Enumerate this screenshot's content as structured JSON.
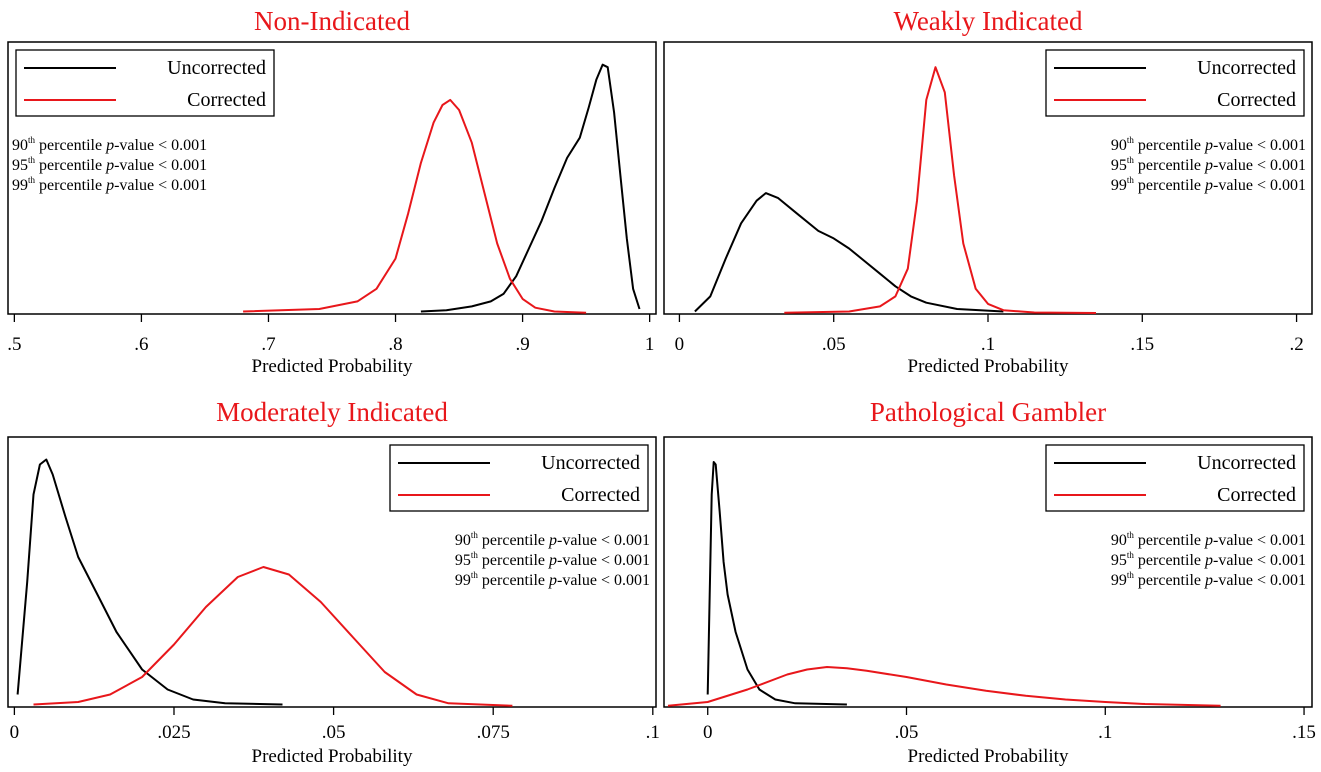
{
  "chart_data": [
    {
      "type": "line",
      "title": "Non-Indicated",
      "xlabel": "Predicted Probability",
      "xlim": [
        0.495,
        1.005
      ],
      "ylim": [
        0,
        1.08
      ],
      "xticks": [
        0.5,
        0.6,
        0.7,
        0.8,
        0.9,
        1.0
      ],
      "xtick_labels": [
        ".5",
        ".6",
        ".7",
        ".8",
        ".9",
        "1"
      ],
      "legend": {
        "position": "top-left"
      },
      "notes": [
        {
          "pct": "90",
          "sup": "th",
          "text": " percentile ",
          "p": "p",
          "rest": "-value < 0.001"
        },
        {
          "pct": "95",
          "sup": "th",
          "text": " percentile ",
          "p": "p",
          "rest": "-value < 0.001"
        },
        {
          "pct": "99",
          "sup": "th",
          "text": " percentile ",
          "p": "p",
          "rest": "-value < 0.001"
        }
      ],
      "notes_position": "left",
      "series": [
        {
          "name": "Uncorrected",
          "color": "#000000",
          "x": [
            0.82,
            0.84,
            0.86,
            0.875,
            0.885,
            0.895,
            0.905,
            0.915,
            0.925,
            0.935,
            0.945,
            0.952,
            0.958,
            0.963,
            0.967,
            0.972,
            0.977,
            0.982,
            0.987,
            0.992
          ],
          "y": [
            0.01,
            0.015,
            0.03,
            0.05,
            0.08,
            0.15,
            0.26,
            0.37,
            0.5,
            0.62,
            0.7,
            0.82,
            0.93,
            0.99,
            0.98,
            0.8,
            0.55,
            0.3,
            0.1,
            0.02
          ]
        },
        {
          "name": "Corrected",
          "color": "#e8171b",
          "x": [
            0.68,
            0.74,
            0.77,
            0.785,
            0.8,
            0.81,
            0.82,
            0.83,
            0.837,
            0.843,
            0.85,
            0.86,
            0.87,
            0.88,
            0.89,
            0.9,
            0.91,
            0.925,
            0.95
          ],
          "y": [
            0.01,
            0.02,
            0.05,
            0.1,
            0.22,
            0.4,
            0.6,
            0.76,
            0.83,
            0.85,
            0.81,
            0.68,
            0.48,
            0.28,
            0.14,
            0.06,
            0.025,
            0.01,
            0.005
          ]
        }
      ]
    },
    {
      "type": "line",
      "title": "Weakly Indicated",
      "xlabel": "Predicted Probability",
      "xlim": [
        -0.005,
        0.205
      ],
      "ylim": [
        0,
        1.08
      ],
      "xticks": [
        0,
        0.05,
        0.1,
        0.15,
        0.2
      ],
      "xtick_labels": [
        "0",
        ".05",
        ".1",
        ".15",
        ".2"
      ],
      "legend": {
        "position": "top-right"
      },
      "notes": [
        {
          "pct": "90",
          "sup": "th",
          "text": " percentile ",
          "p": "p",
          "rest": "-value < 0.001"
        },
        {
          "pct": "95",
          "sup": "th",
          "text": " percentile ",
          "p": "p",
          "rest": "-value < 0.001"
        },
        {
          "pct": "99",
          "sup": "th",
          "text": " percentile ",
          "p": "p",
          "rest": "-value < 0.001"
        }
      ],
      "notes_position": "right",
      "series": [
        {
          "name": "Uncorrected",
          "color": "#000000",
          "x": [
            0.005,
            0.01,
            0.015,
            0.02,
            0.025,
            0.028,
            0.032,
            0.038,
            0.045,
            0.05,
            0.055,
            0.06,
            0.065,
            0.07,
            0.075,
            0.08,
            0.09,
            0.105
          ],
          "y": [
            0.01,
            0.07,
            0.22,
            0.36,
            0.45,
            0.48,
            0.46,
            0.4,
            0.33,
            0.3,
            0.26,
            0.21,
            0.16,
            0.11,
            0.07,
            0.045,
            0.02,
            0.01
          ]
        },
        {
          "name": "Corrected",
          "color": "#e8171b",
          "x": [
            0.034,
            0.055,
            0.065,
            0.07,
            0.074,
            0.077,
            0.08,
            0.083,
            0.086,
            0.089,
            0.092,
            0.096,
            0.1,
            0.105,
            0.115,
            0.135
          ],
          "y": [
            0.005,
            0.01,
            0.03,
            0.07,
            0.18,
            0.45,
            0.85,
            0.98,
            0.88,
            0.55,
            0.28,
            0.1,
            0.04,
            0.015,
            0.006,
            0.004
          ]
        }
      ]
    },
    {
      "type": "line",
      "title": "Moderately Indicated",
      "xlabel": "Predicted Probability",
      "xlim": [
        -0.001,
        0.1005
      ],
      "ylim": [
        0,
        1.08
      ],
      "xticks": [
        0,
        0.025,
        0.05,
        0.075,
        0.1
      ],
      "xtick_labels": [
        "0",
        ".025",
        ".05",
        ".075",
        ".1"
      ],
      "legend": {
        "position": "top-right"
      },
      "notes": [
        {
          "pct": "90",
          "sup": "th",
          "text": " percentile ",
          "p": "p",
          "rest": "-value < 0.001"
        },
        {
          "pct": "95",
          "sup": "th",
          "text": " percentile ",
          "p": "p",
          "rest": "-value < 0.001"
        },
        {
          "pct": "99",
          "sup": "th",
          "text": " percentile ",
          "p": "p",
          "rest": "-value < 0.001"
        }
      ],
      "notes_position": "right",
      "series": [
        {
          "name": "Uncorrected",
          "color": "#000000",
          "x": [
            0.0005,
            0.002,
            0.003,
            0.004,
            0.005,
            0.006,
            0.008,
            0.01,
            0.013,
            0.016,
            0.02,
            0.024,
            0.028,
            0.033,
            0.042
          ],
          "y": [
            0.05,
            0.5,
            0.85,
            0.97,
            0.99,
            0.93,
            0.76,
            0.6,
            0.45,
            0.3,
            0.15,
            0.07,
            0.03,
            0.015,
            0.01
          ]
        },
        {
          "name": "Corrected",
          "color": "#e8171b",
          "x": [
            0.003,
            0.01,
            0.015,
            0.02,
            0.025,
            0.03,
            0.035,
            0.039,
            0.043,
            0.048,
            0.053,
            0.058,
            0.063,
            0.068,
            0.078
          ],
          "y": [
            0.01,
            0.02,
            0.05,
            0.12,
            0.25,
            0.4,
            0.52,
            0.56,
            0.53,
            0.42,
            0.28,
            0.14,
            0.05,
            0.015,
            0.005
          ]
        }
      ]
    },
    {
      "type": "line",
      "title": "Pathological Gambler",
      "xlabel": "Predicted Probability",
      "xlim": [
        -0.011,
        0.152
      ],
      "ylim": [
        0,
        1.08
      ],
      "xticks": [
        0,
        0.05,
        0.1,
        0.15
      ],
      "xtick_labels": [
        "0",
        ".05",
        ".1",
        ".15"
      ],
      "legend": {
        "position": "top-right"
      },
      "notes": [
        {
          "pct": "90",
          "sup": "th",
          "text": " percentile ",
          "p": "p",
          "rest": "-value < 0.001"
        },
        {
          "pct": "95",
          "sup": "th",
          "text": " percentile ",
          "p": "p",
          "rest": "-value < 0.001"
        },
        {
          "pct": "99",
          "sup": "th",
          "text": " percentile ",
          "p": "p",
          "rest": "-value < 0.001"
        }
      ],
      "notes_position": "right",
      "series": [
        {
          "name": "Uncorrected",
          "color": "#000000",
          "x": [
            0.0,
            0.0005,
            0.001,
            0.0015,
            0.002,
            0.003,
            0.004,
            0.005,
            0.007,
            0.01,
            0.013,
            0.017,
            0.022,
            0.035
          ],
          "y": [
            0.05,
            0.45,
            0.85,
            0.98,
            0.97,
            0.78,
            0.58,
            0.45,
            0.3,
            0.15,
            0.07,
            0.03,
            0.015,
            0.01
          ]
        },
        {
          "name": "Corrected",
          "color": "#e8171b",
          "x": [
            -0.01,
            0.0,
            0.01,
            0.02,
            0.025,
            0.03,
            0.035,
            0.04,
            0.05,
            0.06,
            0.07,
            0.08,
            0.09,
            0.1,
            0.11,
            0.129
          ],
          "y": [
            0.005,
            0.02,
            0.07,
            0.13,
            0.15,
            0.16,
            0.155,
            0.145,
            0.12,
            0.09,
            0.065,
            0.045,
            0.03,
            0.02,
            0.012,
            0.005
          ]
        }
      ]
    }
  ]
}
